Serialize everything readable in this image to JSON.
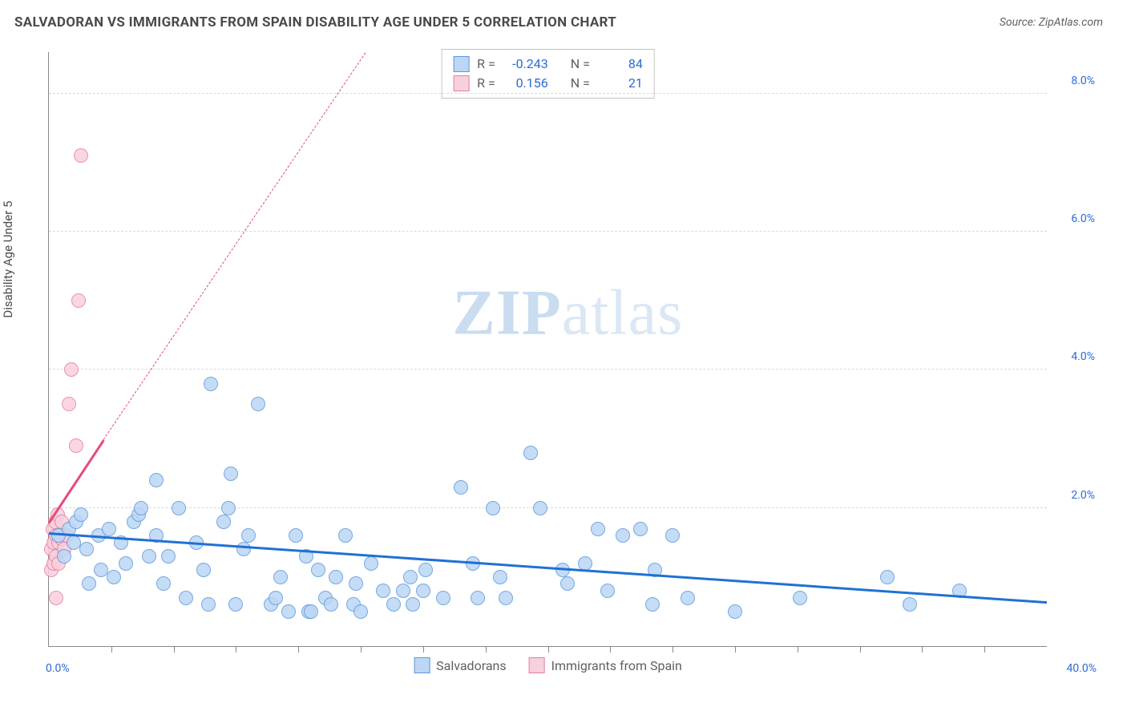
{
  "header": {
    "title": "SALVADORAN VS IMMIGRANTS FROM SPAIN DISABILITY AGE UNDER 5 CORRELATION CHART",
    "source_prefix": "Source: ",
    "source_name": "ZipAtlas.com"
  },
  "watermark": {
    "zip": "ZIP",
    "atlas": "atlas"
  },
  "chart": {
    "type": "scatter",
    "background_color": "#ffffff",
    "grid_color": "#d8d8d8",
    "axis_color": "#888888",
    "y_axis_label": "Disability Age Under 5",
    "x_range": [
      0,
      40
    ],
    "y_range": [
      0,
      8.6
    ],
    "x_min_label": "0.0%",
    "x_max_label": "40.0%",
    "y_ticks": [
      {
        "v": 2.0,
        "label": "2.0%"
      },
      {
        "v": 4.0,
        "label": "4.0%"
      },
      {
        "v": 6.0,
        "label": "6.0%"
      },
      {
        "v": 8.0,
        "label": "8.0%"
      }
    ],
    "x_tick_step": 2.5,
    "marker_radius": 9,
    "marker_border_width": 1.5,
    "trend_line_width": 3,
    "series": [
      {
        "key": "salvadorans",
        "label": "Salvadorans",
        "fill": "#bcd7f5",
        "stroke": "#5e98de",
        "line_color": "#1f71d4",
        "r_value": "-0.243",
        "n_value": "84",
        "trend": {
          "x1": 0,
          "y1": 1.65,
          "x2": 40,
          "y2": 0.65
        },
        "points": [
          [
            0.4,
            1.6
          ],
          [
            0.6,
            1.3
          ],
          [
            0.8,
            1.7
          ],
          [
            1.0,
            1.5
          ],
          [
            1.1,
            1.8
          ],
          [
            1.3,
            1.9
          ],
          [
            1.5,
            1.4
          ],
          [
            1.6,
            0.9
          ],
          [
            2.0,
            1.6
          ],
          [
            2.1,
            1.1
          ],
          [
            2.4,
            1.7
          ],
          [
            2.6,
            1.0
          ],
          [
            2.9,
            1.5
          ],
          [
            3.1,
            1.2
          ],
          [
            3.4,
            1.8
          ],
          [
            3.6,
            1.9
          ],
          [
            3.7,
            2.0
          ],
          [
            4.0,
            1.3
          ],
          [
            4.3,
            2.4
          ],
          [
            4.3,
            1.6
          ],
          [
            4.6,
            0.9
          ],
          [
            4.8,
            1.3
          ],
          [
            5.2,
            2.0
          ],
          [
            5.5,
            0.7
          ],
          [
            5.9,
            1.5
          ],
          [
            6.2,
            1.1
          ],
          [
            6.4,
            0.6
          ],
          [
            6.5,
            3.8
          ],
          [
            7.0,
            1.8
          ],
          [
            7.2,
            2.0
          ],
          [
            7.3,
            2.5
          ],
          [
            7.5,
            0.6
          ],
          [
            7.8,
            1.4
          ],
          [
            8.0,
            1.6
          ],
          [
            8.4,
            3.5
          ],
          [
            8.9,
            0.6
          ],
          [
            9.1,
            0.7
          ],
          [
            9.3,
            1.0
          ],
          [
            9.6,
            0.5
          ],
          [
            9.9,
            1.6
          ],
          [
            10.3,
            1.3
          ],
          [
            10.4,
            0.5
          ],
          [
            10.5,
            0.5
          ],
          [
            10.8,
            1.1
          ],
          [
            11.1,
            0.7
          ],
          [
            11.3,
            0.6
          ],
          [
            11.5,
            1.0
          ],
          [
            11.9,
            1.6
          ],
          [
            12.2,
            0.6
          ],
          [
            12.3,
            0.9
          ],
          [
            12.5,
            0.5
          ],
          [
            12.9,
            1.2
          ],
          [
            13.4,
            0.8
          ],
          [
            13.8,
            0.6
          ],
          [
            14.2,
            0.8
          ],
          [
            14.5,
            1.0
          ],
          [
            14.6,
            0.6
          ],
          [
            15.0,
            0.8
          ],
          [
            15.1,
            1.1
          ],
          [
            15.8,
            0.7
          ],
          [
            16.5,
            2.3
          ],
          [
            17.0,
            1.2
          ],
          [
            17.2,
            0.7
          ],
          [
            17.8,
            2.0
          ],
          [
            18.1,
            1.0
          ],
          [
            18.3,
            0.7
          ],
          [
            19.3,
            2.8
          ],
          [
            19.7,
            2.0
          ],
          [
            20.6,
            1.1
          ],
          [
            20.8,
            0.9
          ],
          [
            21.5,
            1.2
          ],
          [
            22.0,
            1.7
          ],
          [
            22.4,
            0.8
          ],
          [
            23.0,
            1.6
          ],
          [
            23.7,
            1.7
          ],
          [
            24.2,
            0.6
          ],
          [
            24.3,
            1.1
          ],
          [
            25.0,
            1.6
          ],
          [
            25.6,
            0.7
          ],
          [
            27.5,
            0.5
          ],
          [
            30.1,
            0.7
          ],
          [
            33.6,
            1.0
          ],
          [
            34.5,
            0.6
          ],
          [
            36.5,
            0.8
          ]
        ]
      },
      {
        "key": "spain",
        "label": "Immigrants from Spain",
        "fill": "#f8cfdd",
        "stroke": "#e6809f",
        "line_color": "#e34a7a",
        "r_value": "0.156",
        "n_value": "21",
        "trend_solid": {
          "x1": 0,
          "y1": 1.8,
          "x2": 2.2,
          "y2": 3.0
        },
        "trend_dashed": {
          "x1": 2.2,
          "y1": 3.0,
          "x2": 12.7,
          "y2": 8.6
        },
        "points": [
          [
            0.1,
            1.1
          ],
          [
            0.1,
            1.4
          ],
          [
            0.15,
            1.7
          ],
          [
            0.2,
            1.2
          ],
          [
            0.2,
            1.5
          ],
          [
            0.25,
            1.8
          ],
          [
            0.3,
            1.3
          ],
          [
            0.3,
            1.6
          ],
          [
            0.35,
            1.9
          ],
          [
            0.4,
            1.2
          ],
          [
            0.4,
            1.5
          ],
          [
            0.5,
            1.55
          ],
          [
            0.5,
            1.8
          ],
          [
            0.6,
            1.4
          ],
          [
            0.7,
            1.6
          ],
          [
            0.3,
            0.7
          ],
          [
            0.8,
            3.5
          ],
          [
            0.9,
            4.0
          ],
          [
            1.2,
            5.0
          ],
          [
            1.1,
            2.9
          ],
          [
            1.3,
            7.1
          ]
        ]
      }
    ],
    "stats_box_labels": {
      "r": "R =",
      "n": "N ="
    }
  }
}
